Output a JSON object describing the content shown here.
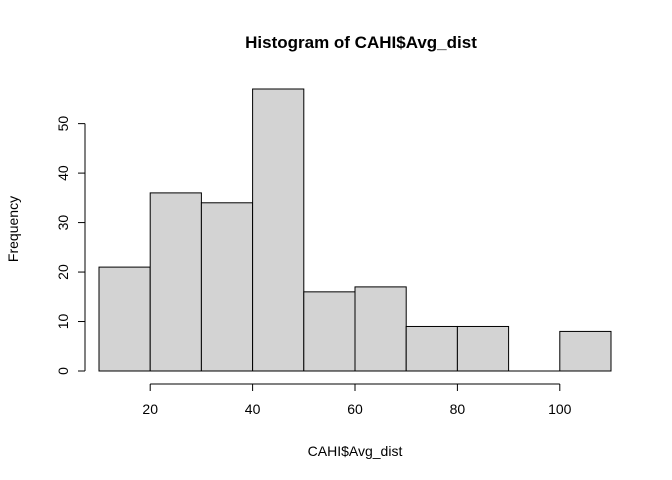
{
  "chart_data": {
    "type": "bar",
    "title": "Histogram of CAHI$Avg_dist",
    "xlabel": "CAHI$Avg_dist",
    "ylabel": "Frequency",
    "bins": [
      {
        "start": 10,
        "end": 20,
        "count": 21
      },
      {
        "start": 20,
        "end": 30,
        "count": 36
      },
      {
        "start": 30,
        "end": 40,
        "count": 34
      },
      {
        "start": 40,
        "end": 50,
        "count": 57
      },
      {
        "start": 50,
        "end": 60,
        "count": 16
      },
      {
        "start": 60,
        "end": 70,
        "count": 17
      },
      {
        "start": 70,
        "end": 80,
        "count": 9
      },
      {
        "start": 80,
        "end": 90,
        "count": 9
      },
      {
        "start": 90,
        "end": 100,
        "count": 0
      },
      {
        "start": 100,
        "end": 110,
        "count": 8
      }
    ],
    "xlim": [
      10,
      110
    ],
    "ylim": [
      0,
      57
    ],
    "x_ticks": [
      "20",
      "40",
      "60",
      "80",
      "100"
    ],
    "y_ticks": [
      "0",
      "10",
      "20",
      "30",
      "40",
      "50"
    ],
    "bar_color": "#d3d3d3",
    "grid": false,
    "legend": "none"
  }
}
